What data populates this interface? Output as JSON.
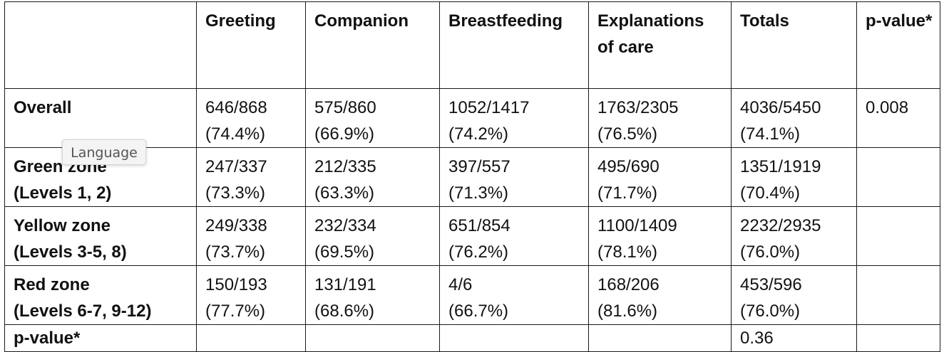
{
  "table": {
    "header": [
      "",
      "Greeting",
      "Companion",
      "Breastfeeding",
      "Explanations of care",
      "Totals",
      "p-value*"
    ],
    "rows": [
      {
        "label": [
          "Overall"
        ],
        "cells": [
          [
            "646/868",
            "(74.4%)"
          ],
          [
            "575/860",
            "(66.9%)"
          ],
          [
            "1052/1417",
            "(74.2%)"
          ],
          [
            "1763/2305",
            "(76.5%)"
          ],
          [
            "4036/5450",
            "(74.1%)"
          ],
          [
            "0.008"
          ]
        ]
      },
      {
        "label": [
          "Green zone",
          "(Levels 1, 2)"
        ],
        "cells": [
          [
            "247/337",
            "(73.3%)"
          ],
          [
            "212/335",
            "(63.3%)"
          ],
          [
            "397/557",
            "(71.3%)"
          ],
          [
            "495/690",
            "(71.7%)"
          ],
          [
            "1351/1919",
            "(70.4%)"
          ],
          [
            ""
          ]
        ]
      },
      {
        "label": [
          "Yellow zone",
          "(Levels 3-5, 8)"
        ],
        "cells": [
          [
            "249/338",
            "(73.7%)"
          ],
          [
            "232/334",
            "(69.5%)"
          ],
          [
            "651/854",
            "(76.2%)"
          ],
          [
            "1100/1409",
            "(78.1%)"
          ],
          [
            "2232/2935",
            "(76.0%)"
          ],
          [
            ""
          ]
        ]
      },
      {
        "label": [
          "Red zone",
          "(Levels 6-7, 9-12)"
        ],
        "cells": [
          [
            "150/193",
            "(77.7%)"
          ],
          [
            "131/191",
            "(68.6%)"
          ],
          [
            "4/6",
            "(66.7%)"
          ],
          [
            "168/206",
            "(81.6%)"
          ],
          [
            "453/596",
            "(76.0%)"
          ],
          [
            ""
          ]
        ]
      },
      {
        "label": [
          "p-value*"
        ],
        "cells": [
          [
            ""
          ],
          [
            ""
          ],
          [
            ""
          ],
          [
            ""
          ],
          [
            "0.36"
          ],
          [
            ""
          ]
        ]
      }
    ]
  },
  "tooltip": {
    "text": "Language"
  }
}
